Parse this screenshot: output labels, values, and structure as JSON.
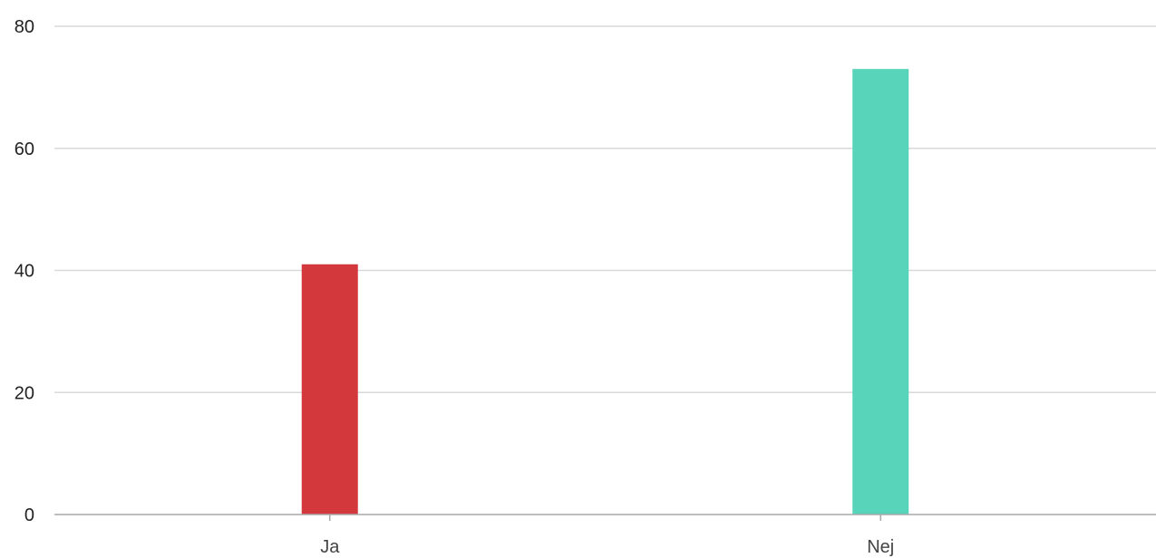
{
  "chart_data": {
    "type": "bar",
    "categories": [
      "Ja",
      "Nej"
    ],
    "values": [
      41,
      73
    ],
    "colors": [
      "#d3383c",
      "#57d4b9"
    ],
    "title": "",
    "xlabel": "",
    "ylabel": "",
    "ylim": [
      0,
      80
    ],
    "yticks": [
      0,
      20,
      40,
      60,
      80
    ],
    "ytick_labels": [
      "0",
      "20",
      "40",
      "60",
      "80"
    ],
    "grid": true,
    "legend": "none"
  }
}
